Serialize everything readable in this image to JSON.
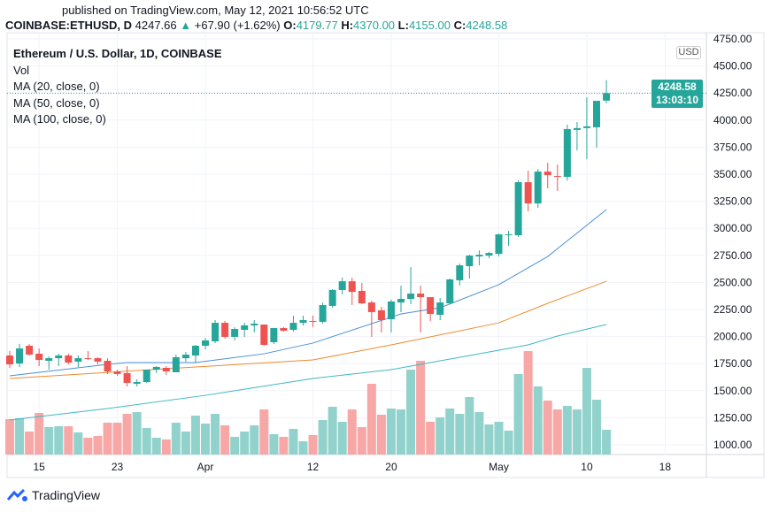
{
  "header": {
    "published": "published on TradingView.com, May 12, 2021 10:56:52 UTC",
    "symbol": "COINBASE:ETHUSD, D",
    "last": "4247.66",
    "change": "+67.90 (+1.62%)",
    "o_label": "O:",
    "o": "4179.77",
    "h_label": "H:",
    "h": "4370.00",
    "l_label": "L:",
    "l": "4155.00",
    "c_label": "C:",
    "c": "4248.58"
  },
  "legend": {
    "title": "Ethereum / U.S. Dollar, 1D, COINBASE",
    "vol": "Vol",
    "ma20": "MA (20, close, 0)",
    "ma50": "MA (50, close, 0)",
    "ma100": "MA (100, close, 0)"
  },
  "price_axis": {
    "currency": "USD",
    "current_price": "4248.58",
    "countdown": "13:03:10"
  },
  "footer": {
    "brand": "TradingView"
  },
  "colors": {
    "up": "#26a69a",
    "down": "#ef5350",
    "vol_up": "#92d2cc",
    "vol_down": "#f7a8a6",
    "ma20": "#4a90d9",
    "ma50": "#ef8a2e",
    "ma100": "#3db7c4",
    "grid": "#f0f3fa"
  },
  "chart_data": {
    "type": "candlestick",
    "ylim": [
      1000,
      4750
    ],
    "y_ticks": [
      "4750.00",
      "4500.00",
      "4250.00",
      "4000.00",
      "3750.00",
      "3500.00",
      "3250.00",
      "3000.00",
      "2750.00",
      "2500.00",
      "2250.00",
      "2000.00",
      "1750.00",
      "1500.00",
      "1250.00",
      "1000.00"
    ],
    "x_ticks": [
      {
        "label": "15",
        "date": "2021-03-15"
      },
      {
        "label": "23",
        "date": "2021-03-23"
      },
      {
        "label": "Apr",
        "date": "2021-04-01"
      },
      {
        "label": "12",
        "date": "2021-04-12"
      },
      {
        "label": "20",
        "date": "2021-04-20"
      },
      {
        "label": "May",
        "date": "2021-05-01"
      },
      {
        "label": "10",
        "date": "2021-05-10"
      },
      {
        "label": "18",
        "date": "2021-05-18"
      }
    ],
    "grid": true,
    "candles": [
      {
        "d": "2021-03-12",
        "o": 1825,
        "h": 1866,
        "l": 1710,
        "c": 1743,
        "v": 40
      },
      {
        "d": "2021-03-13",
        "o": 1751,
        "h": 1931,
        "l": 1718,
        "c": 1890,
        "v": 41
      },
      {
        "d": "2021-03-14",
        "o": 1915,
        "h": 1931,
        "l": 1825,
        "c": 1833,
        "v": 26
      },
      {
        "d": "2021-03-15",
        "o": 1842,
        "h": 1890,
        "l": 1727,
        "c": 1784,
        "v": 47
      },
      {
        "d": "2021-03-16",
        "o": 1776,
        "h": 1817,
        "l": 1694,
        "c": 1800,
        "v": 31
      },
      {
        "d": "2021-03-17",
        "o": 1800,
        "h": 1842,
        "l": 1727,
        "c": 1825,
        "v": 32
      },
      {
        "d": "2021-03-18",
        "o": 1825,
        "h": 1842,
        "l": 1743,
        "c": 1760,
        "v": 32
      },
      {
        "d": "2021-03-19",
        "o": 1768,
        "h": 1825,
        "l": 1718,
        "c": 1800,
        "v": 25
      },
      {
        "d": "2021-03-20",
        "o": 1800,
        "h": 1866,
        "l": 1784,
        "c": 1792,
        "v": 19
      },
      {
        "d": "2021-03-21",
        "o": 1800,
        "h": 1809,
        "l": 1743,
        "c": 1768,
        "v": 21
      },
      {
        "d": "2021-03-22",
        "o": 1776,
        "h": 1800,
        "l": 1654,
        "c": 1678,
        "v": 36
      },
      {
        "d": "2021-03-23",
        "o": 1678,
        "h": 1694,
        "l": 1637,
        "c": 1654,
        "v": 36
      },
      {
        "d": "2021-03-24",
        "o": 1662,
        "h": 1727,
        "l": 1539,
        "c": 1572,
        "v": 46
      },
      {
        "d": "2021-03-25",
        "o": 1564,
        "h": 1605,
        "l": 1539,
        "c": 1580,
        "v": 48
      },
      {
        "d": "2021-03-26",
        "o": 1580,
        "h": 1694,
        "l": 1572,
        "c": 1694,
        "v": 30
      },
      {
        "d": "2021-03-27",
        "o": 1694,
        "h": 1727,
        "l": 1662,
        "c": 1719,
        "v": 19
      },
      {
        "d": "2021-03-28",
        "o": 1711,
        "h": 1727,
        "l": 1646,
        "c": 1678,
        "v": 17
      },
      {
        "d": "2021-03-29",
        "o": 1670,
        "h": 1833,
        "l": 1670,
        "c": 1809,
        "v": 36
      },
      {
        "d": "2021-03-30",
        "o": 1800,
        "h": 1858,
        "l": 1768,
        "c": 1833,
        "v": 26
      },
      {
        "d": "2021-03-31",
        "o": 1825,
        "h": 1923,
        "l": 1760,
        "c": 1915,
        "v": 44
      },
      {
        "d": "2021-04-01",
        "o": 1915,
        "h": 1988,
        "l": 1882,
        "c": 1964,
        "v": 35
      },
      {
        "d": "2021-04-02",
        "o": 1956,
        "h": 2152,
        "l": 1939,
        "c": 2127,
        "v": 46
      },
      {
        "d": "2021-04-03",
        "o": 2127,
        "h": 2144,
        "l": 1980,
        "c": 1997,
        "v": 33
      },
      {
        "d": "2021-04-04",
        "o": 1997,
        "h": 2087,
        "l": 1964,
        "c": 2070,
        "v": 20
      },
      {
        "d": "2021-04-05",
        "o": 2062,
        "h": 2127,
        "l": 1997,
        "c": 2103,
        "v": 26
      },
      {
        "d": "2021-04-06",
        "o": 2103,
        "h": 2152,
        "l": 2038,
        "c": 2119,
        "v": 33
      },
      {
        "d": "2021-04-07",
        "o": 2111,
        "h": 2111,
        "l": 1915,
        "c": 1923,
        "v": 51
      },
      {
        "d": "2021-04-08",
        "o": 1948,
        "h": 2079,
        "l": 1931,
        "c": 2079,
        "v": 23
      },
      {
        "d": "2021-04-09",
        "o": 2079,
        "h": 2087,
        "l": 2046,
        "c": 2054,
        "v": 20
      },
      {
        "d": "2021-04-10",
        "o": 2062,
        "h": 2193,
        "l": 2046,
        "c": 2127,
        "v": 29
      },
      {
        "d": "2021-04-11",
        "o": 2127,
        "h": 2193,
        "l": 2103,
        "c": 2152,
        "v": 15
      },
      {
        "d": "2021-04-12",
        "o": 2144,
        "h": 2193,
        "l": 2087,
        "c": 2136,
        "v": 22
      },
      {
        "d": "2021-04-13",
        "o": 2136,
        "h": 2315,
        "l": 2119,
        "c": 2291,
        "v": 39
      },
      {
        "d": "2021-04-14",
        "o": 2283,
        "h": 2438,
        "l": 2266,
        "c": 2430,
        "v": 54
      },
      {
        "d": "2021-04-15",
        "o": 2430,
        "h": 2544,
        "l": 2389,
        "c": 2511,
        "v": 37
      },
      {
        "d": "2021-04-16",
        "o": 2511,
        "h": 2544,
        "l": 2291,
        "c": 2413,
        "v": 51
      },
      {
        "d": "2021-04-17",
        "o": 2422,
        "h": 2495,
        "l": 2299,
        "c": 2307,
        "v": 31
      },
      {
        "d": "2021-04-18",
        "o": 2315,
        "h": 2332,
        "l": 1997,
        "c": 2226,
        "v": 80
      },
      {
        "d": "2021-04-19",
        "o": 2242,
        "h": 2274,
        "l": 2038,
        "c": 2152,
        "v": 45
      },
      {
        "d": "2021-04-20",
        "o": 2160,
        "h": 2340,
        "l": 2038,
        "c": 2324,
        "v": 52
      },
      {
        "d": "2021-04-21",
        "o": 2315,
        "h": 2470,
        "l": 2226,
        "c": 2348,
        "v": 51
      },
      {
        "d": "2021-04-22",
        "o": 2348,
        "h": 2642,
        "l": 2299,
        "c": 2397,
        "v": 96
      },
      {
        "d": "2021-04-23",
        "o": 2397,
        "h": 2470,
        "l": 2038,
        "c": 2364,
        "v": 106
      },
      {
        "d": "2021-04-24",
        "o": 2364,
        "h": 2364,
        "l": 2144,
        "c": 2209,
        "v": 37
      },
      {
        "d": "2021-04-25",
        "o": 2201,
        "h": 2356,
        "l": 2152,
        "c": 2315,
        "v": 42
      },
      {
        "d": "2021-04-26",
        "o": 2307,
        "h": 2536,
        "l": 2299,
        "c": 2528,
        "v": 52
      },
      {
        "d": "2021-04-27",
        "o": 2520,
        "h": 2675,
        "l": 2471,
        "c": 2658,
        "v": 46
      },
      {
        "d": "2021-04-28",
        "o": 2650,
        "h": 2756,
        "l": 2536,
        "c": 2748,
        "v": 65
      },
      {
        "d": "2021-04-29",
        "o": 2740,
        "h": 2797,
        "l": 2658,
        "c": 2756,
        "v": 48
      },
      {
        "d": "2021-04-30",
        "o": 2748,
        "h": 2781,
        "l": 2724,
        "c": 2772,
        "v": 34
      },
      {
        "d": "2021-05-01",
        "o": 2764,
        "h": 2952,
        "l": 2740,
        "c": 2944,
        "v": 37
      },
      {
        "d": "2021-05-02",
        "o": 2936,
        "h": 2977,
        "l": 2838,
        "c": 2944,
        "v": 27
      },
      {
        "d": "2021-05-03",
        "o": 2936,
        "h": 3443,
        "l": 2920,
        "c": 3426,
        "v": 91
      },
      {
        "d": "2021-05-04",
        "o": 3426,
        "h": 3532,
        "l": 3157,
        "c": 3230,
        "v": 117
      },
      {
        "d": "2021-05-05",
        "o": 3230,
        "h": 3548,
        "l": 3190,
        "c": 3524,
        "v": 77
      },
      {
        "d": "2021-05-06",
        "o": 3524,
        "h": 3606,
        "l": 3369,
        "c": 3491,
        "v": 61
      },
      {
        "d": "2021-05-07",
        "o": 3483,
        "h": 3589,
        "l": 3345,
        "c": 3479,
        "v": 51
      },
      {
        "d": "2021-05-08",
        "o": 3475,
        "h": 3958,
        "l": 3443,
        "c": 3917,
        "v": 55
      },
      {
        "d": "2021-05-09",
        "o": 3909,
        "h": 3982,
        "l": 3720,
        "c": 3926,
        "v": 51
      },
      {
        "d": "2021-05-10",
        "o": 3926,
        "h": 4211,
        "l": 3638,
        "c": 3942,
        "v": 98
      },
      {
        "d": "2021-05-11",
        "o": 3933,
        "h": 4178,
        "l": 3745,
        "c": 4178,
        "v": 62
      },
      {
        "d": "2021-05-12",
        "o": 4179.77,
        "h": 4370,
        "l": 4155,
        "c": 4248.58,
        "v": 28
      }
    ],
    "series": [
      {
        "name": "MA (20, close, 0)",
        "key": "ma20",
        "points": [
          [
            "2021-03-12",
            1637
          ],
          [
            "2021-03-22",
            1743
          ],
          [
            "2021-03-24",
            1760
          ],
          [
            "2021-03-31",
            1760
          ],
          [
            "2021-04-07",
            1841
          ],
          [
            "2021-04-12",
            1940
          ],
          [
            "2021-04-21",
            2209
          ],
          [
            "2021-04-25",
            2266
          ],
          [
            "2021-05-01",
            2479
          ],
          [
            "2021-05-06",
            2740
          ],
          [
            "2021-05-12",
            3173
          ]
        ]
      },
      {
        "name": "MA (50, close, 0)",
        "key": "ma50",
        "points": [
          [
            "2021-03-12",
            1613
          ],
          [
            "2021-03-31",
            1719
          ],
          [
            "2021-04-12",
            1784
          ],
          [
            "2021-04-20",
            1923
          ],
          [
            "2021-05-01",
            2127
          ],
          [
            "2021-05-06",
            2307
          ],
          [
            "2021-05-12",
            2511
          ]
        ]
      },
      {
        "name": "MA (100, close, 0)",
        "key": "ma100",
        "points": [
          [
            "2021-03-12",
            1229
          ],
          [
            "2021-03-22",
            1335
          ],
          [
            "2021-04-01",
            1457
          ],
          [
            "2021-04-12",
            1613
          ],
          [
            "2021-04-20",
            1694
          ],
          [
            "2021-05-04",
            1923
          ],
          [
            "2021-05-07",
            2005
          ],
          [
            "2021-05-12",
            2111
          ]
        ]
      }
    ]
  }
}
